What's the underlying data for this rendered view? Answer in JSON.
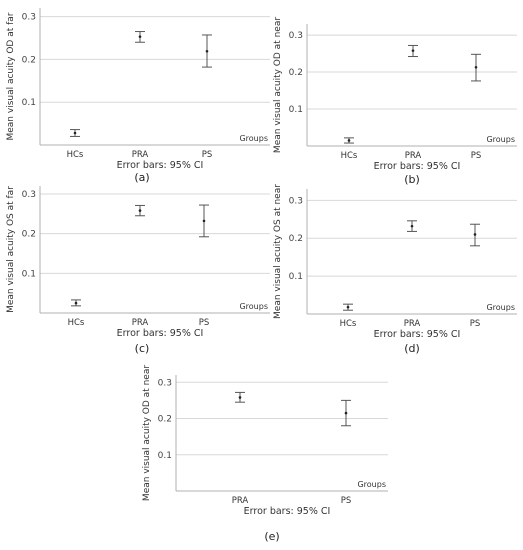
{
  "chart_data": [
    {
      "type": "errorbar",
      "caption": "(a)",
      "ylabel": "Mean visual acuity OD at far",
      "xlabel": "Groups",
      "footnote": "Error bars: 95% CI",
      "categories": [
        "HCs",
        "PRA",
        "PS"
      ],
      "mean": [
        0.028,
        0.253,
        0.219
      ],
      "lower": [
        0.02,
        0.24,
        0.182
      ],
      "upper": [
        0.036,
        0.265,
        0.257
      ],
      "yticks": [
        "0.1",
        "0.2",
        "0.3"
      ],
      "ylim": [
        0,
        0.32
      ],
      "grid": true
    },
    {
      "type": "errorbar",
      "caption": "(b)",
      "ylabel": "Mean visual acuity OD at near",
      "xlabel": "Groups",
      "footnote": "Error bars: 95% CI",
      "categories": [
        "HCs",
        "PRA",
        "PS"
      ],
      "mean": [
        0.015,
        0.258,
        0.213
      ],
      "lower": [
        0.008,
        0.242,
        0.176
      ],
      "upper": [
        0.022,
        0.272,
        0.248
      ],
      "yticks": [
        "0.1",
        "0.2",
        "0.3"
      ],
      "ylim": [
        0,
        0.33
      ],
      "grid": true
    },
    {
      "type": "errorbar",
      "caption": "(c)",
      "ylabel": "Mean visual acuity OS at far",
      "xlabel": "Groups",
      "footnote": "Error bars: 95% CI",
      "categories": [
        "HCs",
        "PRA",
        "PS"
      ],
      "mean": [
        0.025,
        0.258,
        0.232
      ],
      "lower": [
        0.018,
        0.245,
        0.192
      ],
      "upper": [
        0.033,
        0.271,
        0.272
      ],
      "yticks": [
        "0.1",
        "0.2",
        "0.3"
      ],
      "ylim": [
        0,
        0.32
      ],
      "grid": true
    },
    {
      "type": "errorbar",
      "caption": "(d)",
      "ylabel": "Mean visual acuity OS at near",
      "xlabel": "Groups",
      "footnote": "Error bars: 95% CI",
      "categories": [
        "HCs",
        "PRA",
        "PS"
      ],
      "mean": [
        0.018,
        0.232,
        0.21
      ],
      "lower": [
        0.01,
        0.218,
        0.18
      ],
      "upper": [
        0.026,
        0.246,
        0.237
      ],
      "yticks": [
        "0.1",
        "0.2",
        "0.3"
      ],
      "ylim": [
        0,
        0.33
      ],
      "grid": true
    },
    {
      "type": "errorbar",
      "caption": "(e)",
      "ylabel": "Mean visual acuity OD at near",
      "xlabel": "Groups",
      "footnote": "Error bars: 95% CI",
      "categories": [
        "PRA",
        "PS"
      ],
      "mean": [
        0.258,
        0.215
      ],
      "lower": [
        0.245,
        0.18
      ],
      "upper": [
        0.272,
        0.25
      ],
      "yticks": [
        "0.1",
        "0.2",
        "0.3"
      ],
      "ylim": [
        0,
        0.32
      ],
      "grid": true
    }
  ],
  "colors": {
    "axis": "#b0b0b0",
    "grid": "#d8d8d8",
    "bar": "#555555",
    "text": "#333333"
  }
}
